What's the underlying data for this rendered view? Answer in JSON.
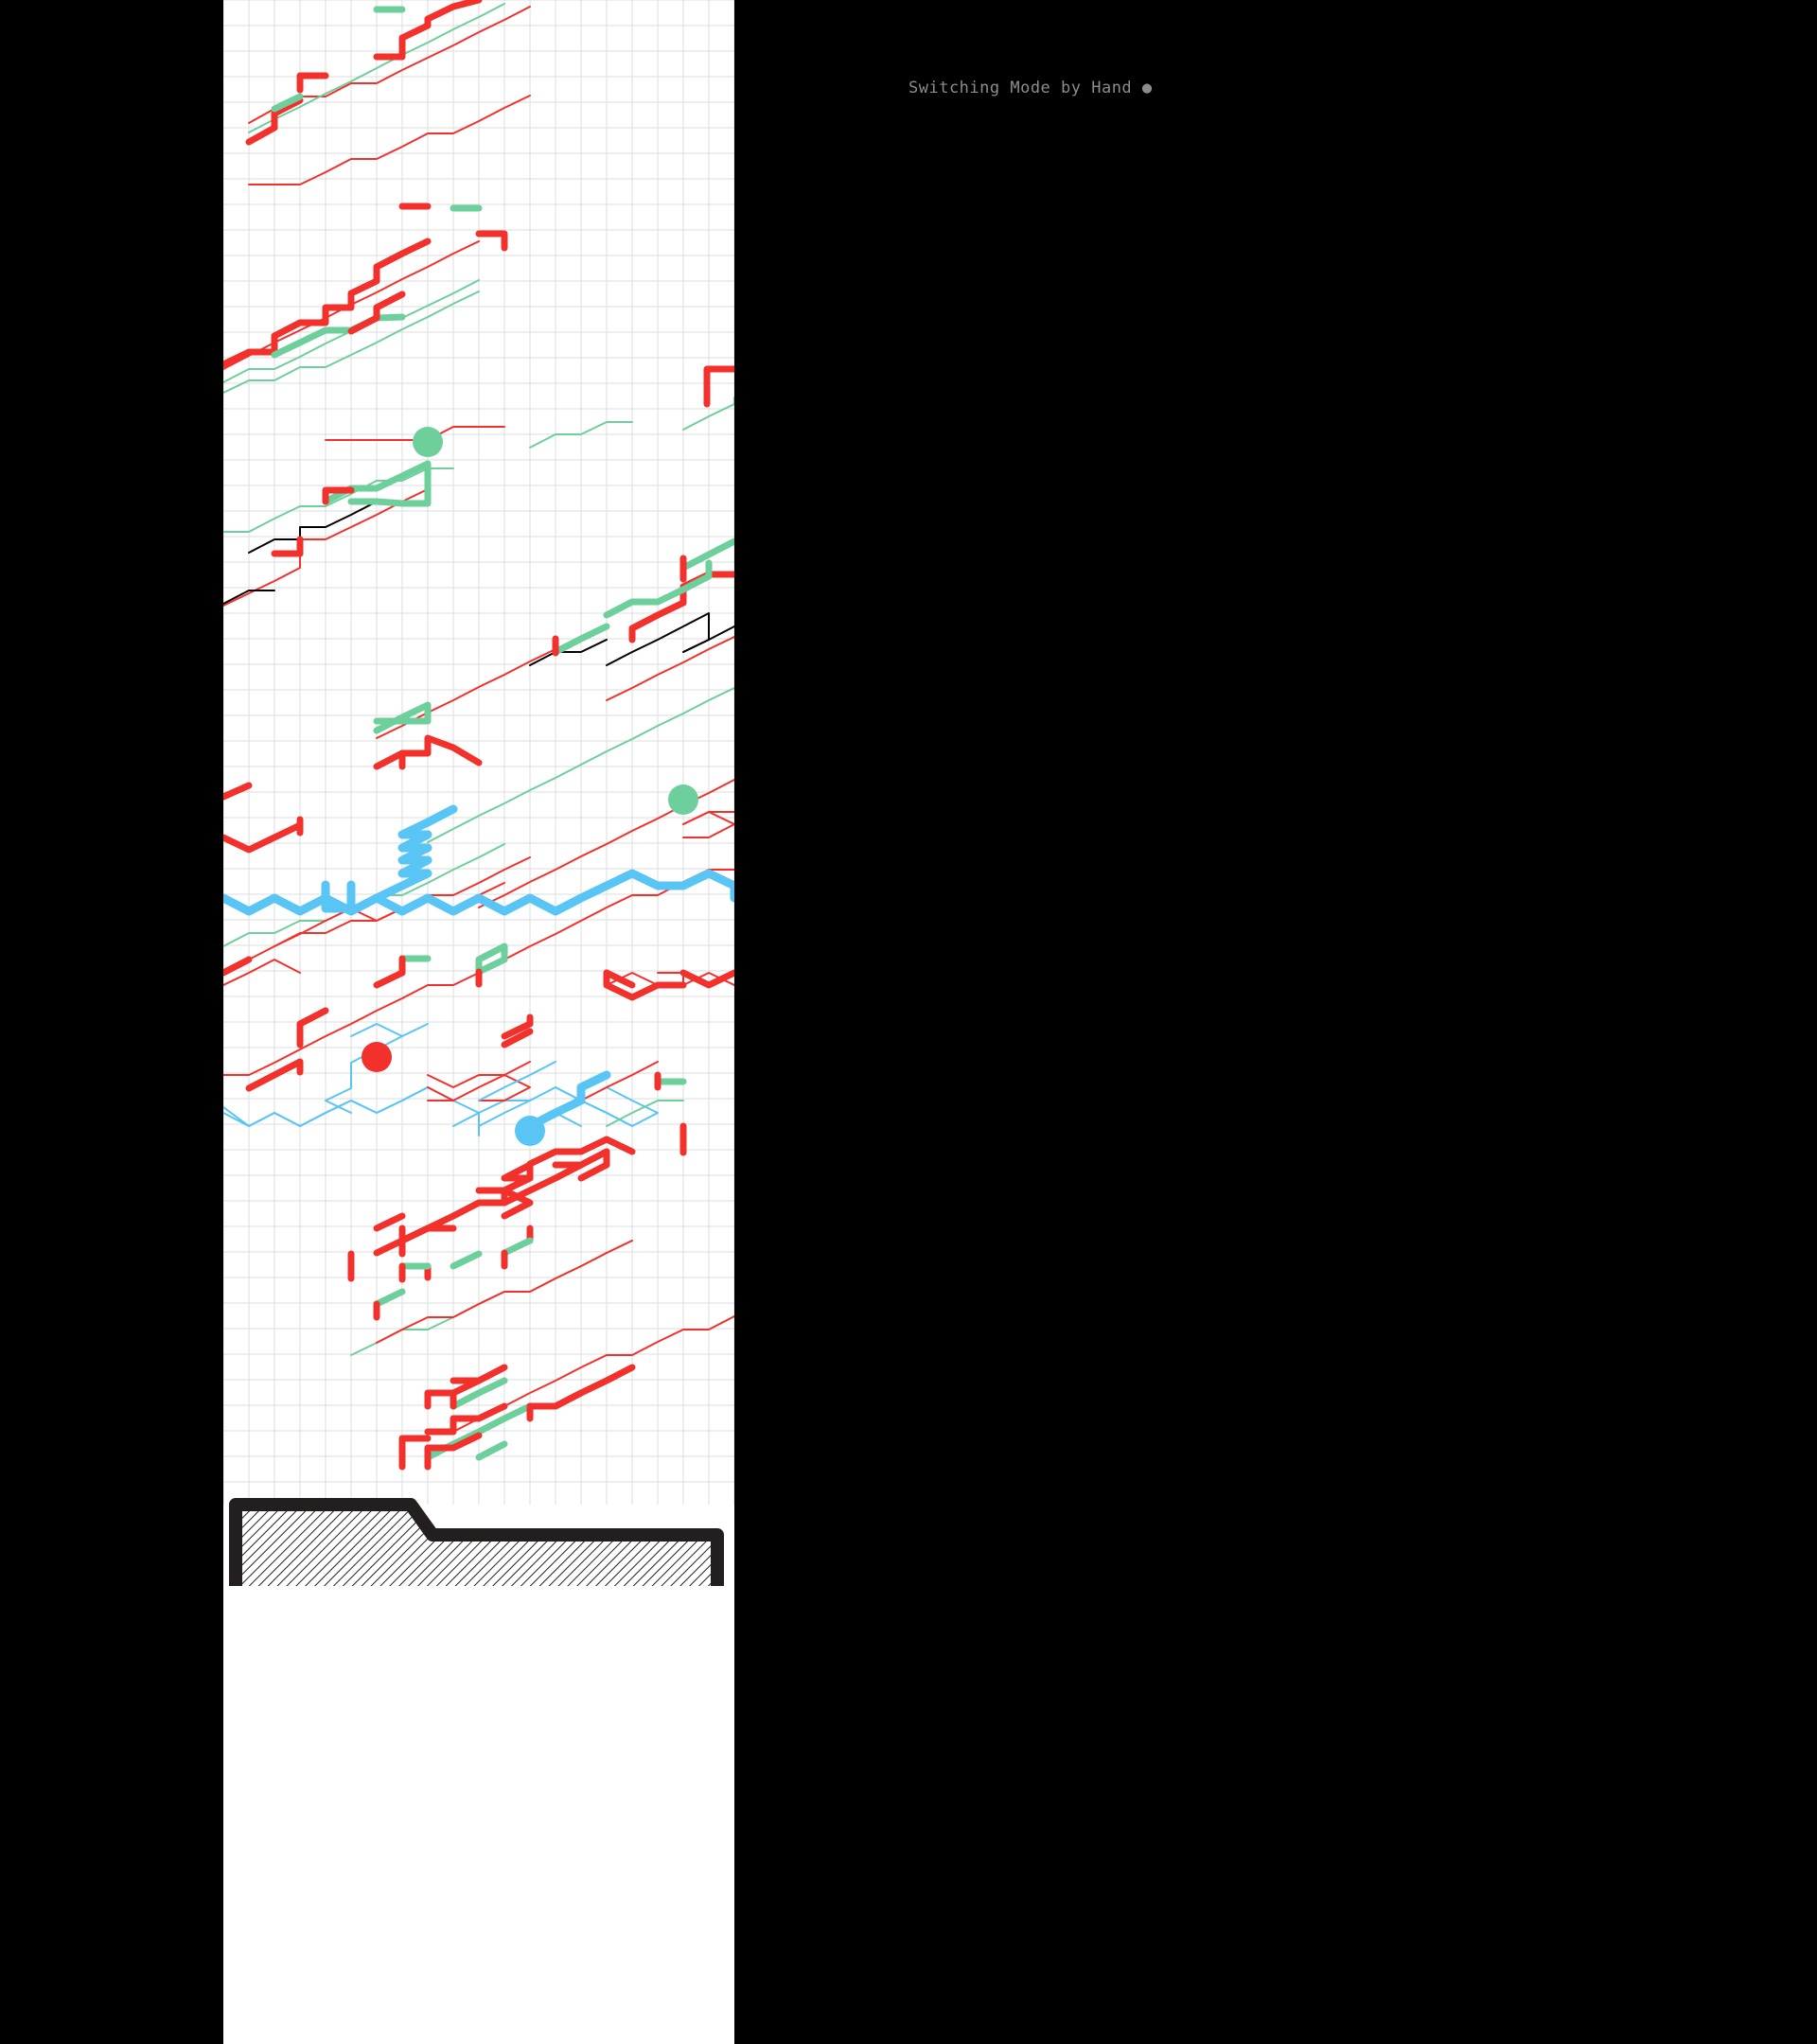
{
  "hud": {
    "mode_label": "Switching Mode by Hand ●"
  },
  "colors": {
    "background": "#000000",
    "playfield": "#ffffff",
    "grid": "#dcdcdc",
    "red_note": "#f2302c",
    "green_note": "#6dcf9b",
    "blue_note": "#59c5f5",
    "black_note": "#000000",
    "judge_line": "#231f1f",
    "hud_text": "#8c8c8c"
  },
  "playfield": {
    "lanes": 20,
    "judge_area_pattern": "diagonal-hatch"
  },
  "notes": {
    "orb_count": 4,
    "orbs": [
      {
        "kind": "green-orb-icon",
        "color": "green"
      },
      {
        "kind": "green-orb-icon",
        "color": "green"
      },
      {
        "kind": "red-orb-icon",
        "color": "red"
      },
      {
        "kind": "blue-orb-icon",
        "color": "blue"
      }
    ]
  }
}
